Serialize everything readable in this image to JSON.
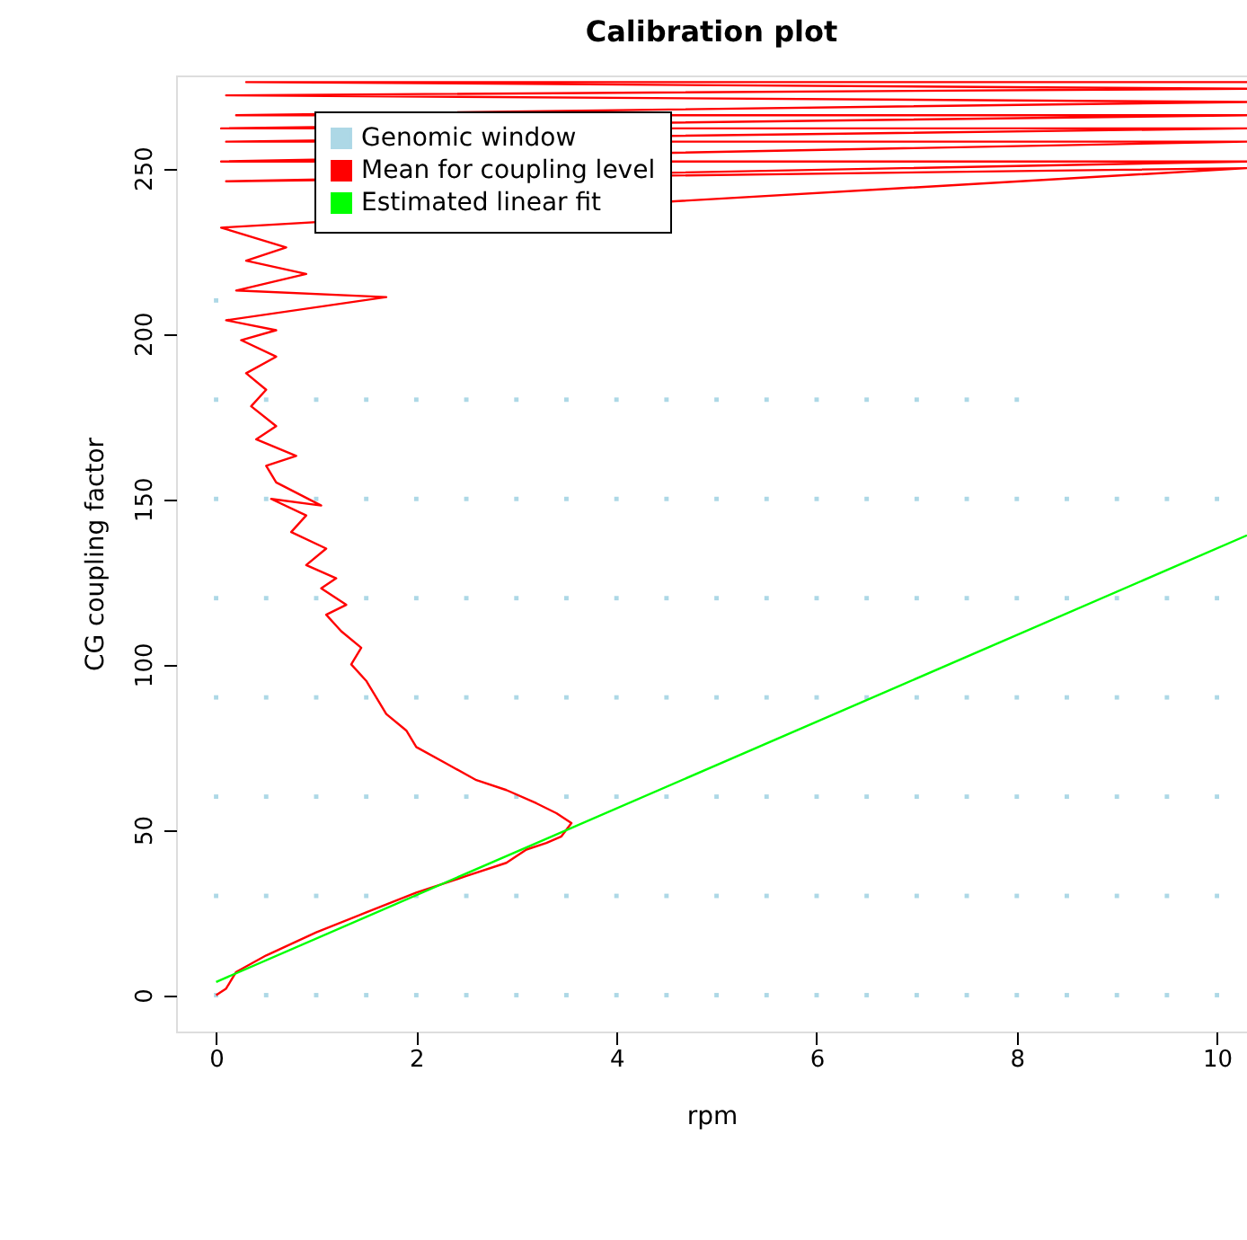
{
  "chart_data": {
    "type": "scatter",
    "title": "Calibration plot",
    "xlabel": "rpm",
    "ylabel": "CG coupling factor",
    "xlim": [
      -0.4,
      10.3
    ],
    "ylim": [
      -11,
      278
    ],
    "xticks": [
      0,
      2,
      4,
      6,
      8,
      10
    ],
    "yticks": [
      0,
      50,
      100,
      150,
      200,
      250
    ],
    "grid": false,
    "legend": "top left",
    "series": [
      {
        "name": "Genomic window",
        "color": "#add8e6",
        "marker": "square",
        "x": [
          0,
          0,
          0,
          0,
          0,
          0,
          0,
          0,
          0.5,
          0.5,
          0.5,
          0.5,
          0.5,
          0.5,
          0.5,
          1,
          1,
          1,
          1,
          1,
          1,
          1,
          1.5,
          1.5,
          1.5,
          1.5,
          1.5,
          1.5,
          1.5,
          2,
          2,
          2,
          2,
          2,
          2,
          2,
          2.5,
          2.5,
          2.5,
          2.5,
          2.5,
          2.5,
          2.5,
          3,
          3,
          3,
          3,
          3,
          3,
          3,
          3.5,
          3.5,
          3.5,
          3.5,
          3.5,
          3.5,
          3.5,
          4,
          4,
          4,
          4,
          4,
          4,
          4,
          4.5,
          4.5,
          4.5,
          4.5,
          4.5,
          4.5,
          4.5,
          5,
          5,
          5,
          5,
          5,
          5,
          5,
          5.5,
          5.5,
          5.5,
          5.5,
          5.5,
          5.5,
          5.5,
          6,
          6,
          6,
          6,
          6,
          6,
          6,
          6.5,
          6.5,
          6.5,
          6.5,
          6.5,
          6.5,
          6.5,
          7,
          7,
          7,
          7,
          7,
          7,
          7,
          7.5,
          7.5,
          7.5,
          7.5,
          7.5,
          7.5,
          7.5,
          8,
          8,
          8,
          8,
          8,
          8,
          8,
          8.5,
          8.5,
          8.5,
          8.5,
          8.5,
          8.5,
          9,
          9,
          9,
          9,
          9,
          9,
          9.5,
          9.5,
          9.5,
          9.5,
          9.5,
          9.5,
          10,
          10,
          10,
          10,
          10,
          10
        ],
        "values": [
          0,
          30,
          60,
          90,
          120,
          150,
          180,
          210,
          0,
          30,
          60,
          90,
          120,
          150,
          180,
          0,
          30,
          60,
          90,
          120,
          150,
          180,
          0,
          30,
          60,
          90,
          120,
          150,
          180,
          0,
          30,
          60,
          90,
          120,
          150,
          180,
          0,
          30,
          60,
          90,
          120,
          150,
          180,
          0,
          30,
          60,
          90,
          120,
          150,
          180,
          0,
          30,
          60,
          90,
          120,
          150,
          180,
          0,
          30,
          60,
          90,
          120,
          150,
          180,
          0,
          30,
          60,
          90,
          120,
          150,
          180,
          0,
          30,
          60,
          90,
          120,
          150,
          180,
          0,
          30,
          60,
          90,
          120,
          150,
          180,
          0,
          30,
          60,
          90,
          120,
          150,
          180,
          0,
          30,
          60,
          90,
          120,
          150,
          180,
          0,
          30,
          60,
          90,
          120,
          150,
          180,
          0,
          30,
          60,
          90,
          120,
          150,
          180,
          0,
          30,
          60,
          90,
          120,
          150,
          180,
          0,
          30,
          60,
          90,
          120,
          150,
          0,
          30,
          60,
          90,
          120,
          150,
          0,
          30,
          60,
          90,
          120,
          150,
          0,
          30,
          60,
          90,
          120,
          150
        ]
      },
      {
        "name": "Mean for coupling level",
        "color": "#ff0000",
        "type": "line",
        "x": [
          0,
          0.1,
          0.2,
          0.5,
          1,
          1.5,
          2,
          2.5,
          2.9,
          3.1,
          3.3,
          3.45,
          3.55,
          3.4,
          3.2,
          2.9,
          2.6,
          2.3,
          2.0,
          1.9,
          1.7,
          1.6,
          1.5,
          1.35,
          1.45,
          1.25,
          1.1,
          1.3,
          1.05,
          1.2,
          0.9,
          1.1,
          0.75,
          0.9,
          0.55,
          1.05,
          0.6,
          0.5,
          0.8,
          0.4,
          0.6,
          0.35,
          0.5,
          0.3,
          0.6,
          0.25,
          0.6,
          0.1,
          1.7,
          0.2,
          0.9,
          0.3,
          0.7,
          0.05,
          10.3,
          0.1,
          10.3,
          0.05,
          10.3,
          0.1,
          10.3,
          0.05,
          10.3,
          0.2,
          10.3,
          0.1,
          10.3,
          0.3,
          10.3
        ],
        "values": [
          0,
          2,
          7,
          12,
          19,
          25,
          31,
          36,
          40,
          44,
          46,
          48,
          52,
          55,
          58,
          62,
          65,
          70,
          75,
          80,
          85,
          90,
          95,
          100,
          105,
          110,
          115,
          118,
          123,
          126,
          130,
          135,
          140,
          145,
          150,
          148,
          155,
          160,
          163,
          168,
          172,
          178,
          183,
          188,
          193,
          198,
          201,
          204,
          211,
          213,
          218,
          222,
          226,
          232,
          250,
          246,
          252,
          252,
          258,
          258,
          262,
          262,
          266,
          266,
          270,
          272,
          274,
          276,
          276
        ]
      },
      {
        "name": "Estimated linear fit",
        "color": "#00ff00",
        "type": "line",
        "x": [
          0,
          10.3
        ],
        "values": [
          4,
          139
        ]
      }
    ]
  }
}
